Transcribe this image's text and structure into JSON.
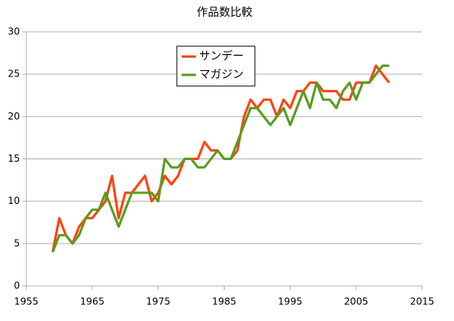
{
  "chart_data": {
    "type": "line",
    "title": "作品数比較",
    "x": [
      1959,
      1960,
      1961,
      1962,
      1963,
      1964,
      1965,
      1966,
      1967,
      1968,
      1969,
      1970,
      1971,
      1972,
      1973,
      1974,
      1975,
      1976,
      1977,
      1978,
      1979,
      1980,
      1981,
      1982,
      1983,
      1984,
      1985,
      1986,
      1987,
      1988,
      1989,
      1990,
      1991,
      1992,
      1993,
      1994,
      1995,
      1996,
      1997,
      1998,
      1999,
      2000,
      2001,
      2002,
      2003,
      2004,
      2005,
      2006,
      2007,
      2008,
      2009,
      2010
    ],
    "series": [
      {
        "name": "サンデー",
        "color": "#ff420e",
        "values": [
          4,
          8,
          6,
          5,
          7,
          8,
          8,
          9,
          10,
          13,
          8,
          11,
          11,
          12,
          13,
          10,
          11,
          13,
          12,
          13,
          15,
          15,
          15,
          17,
          16,
          16,
          15,
          15,
          16,
          20,
          22,
          21,
          22,
          22,
          20,
          22,
          21,
          23,
          23,
          24,
          24,
          23,
          23,
          23,
          22,
          22,
          24,
          24,
          24,
          26,
          25,
          24
        ]
      },
      {
        "name": "マガジン",
        "color": "#579d1c",
        "values": [
          4,
          6,
          6,
          5,
          6,
          8,
          9,
          9,
          11,
          9,
          7,
          9,
          11,
          11,
          11,
          11,
          10,
          15,
          14,
          14,
          15,
          15,
          14,
          14,
          15,
          16,
          15,
          15,
          17,
          19,
          21,
          21,
          20,
          19,
          20,
          21,
          19,
          21,
          23,
          21,
          24,
          22,
          22,
          21,
          23,
          24,
          22,
          24,
          24,
          25,
          26,
          26
        ]
      }
    ],
    "xlim": [
      1955,
      2015
    ],
    "xticks": [
      1955,
      1965,
      1975,
      1985,
      1995,
      2005,
      2015
    ],
    "ylim": [
      0,
      30
    ],
    "yticks": [
      0,
      5,
      10,
      15,
      20,
      25,
      30
    ],
    "grid": true,
    "legend": "top"
  }
}
